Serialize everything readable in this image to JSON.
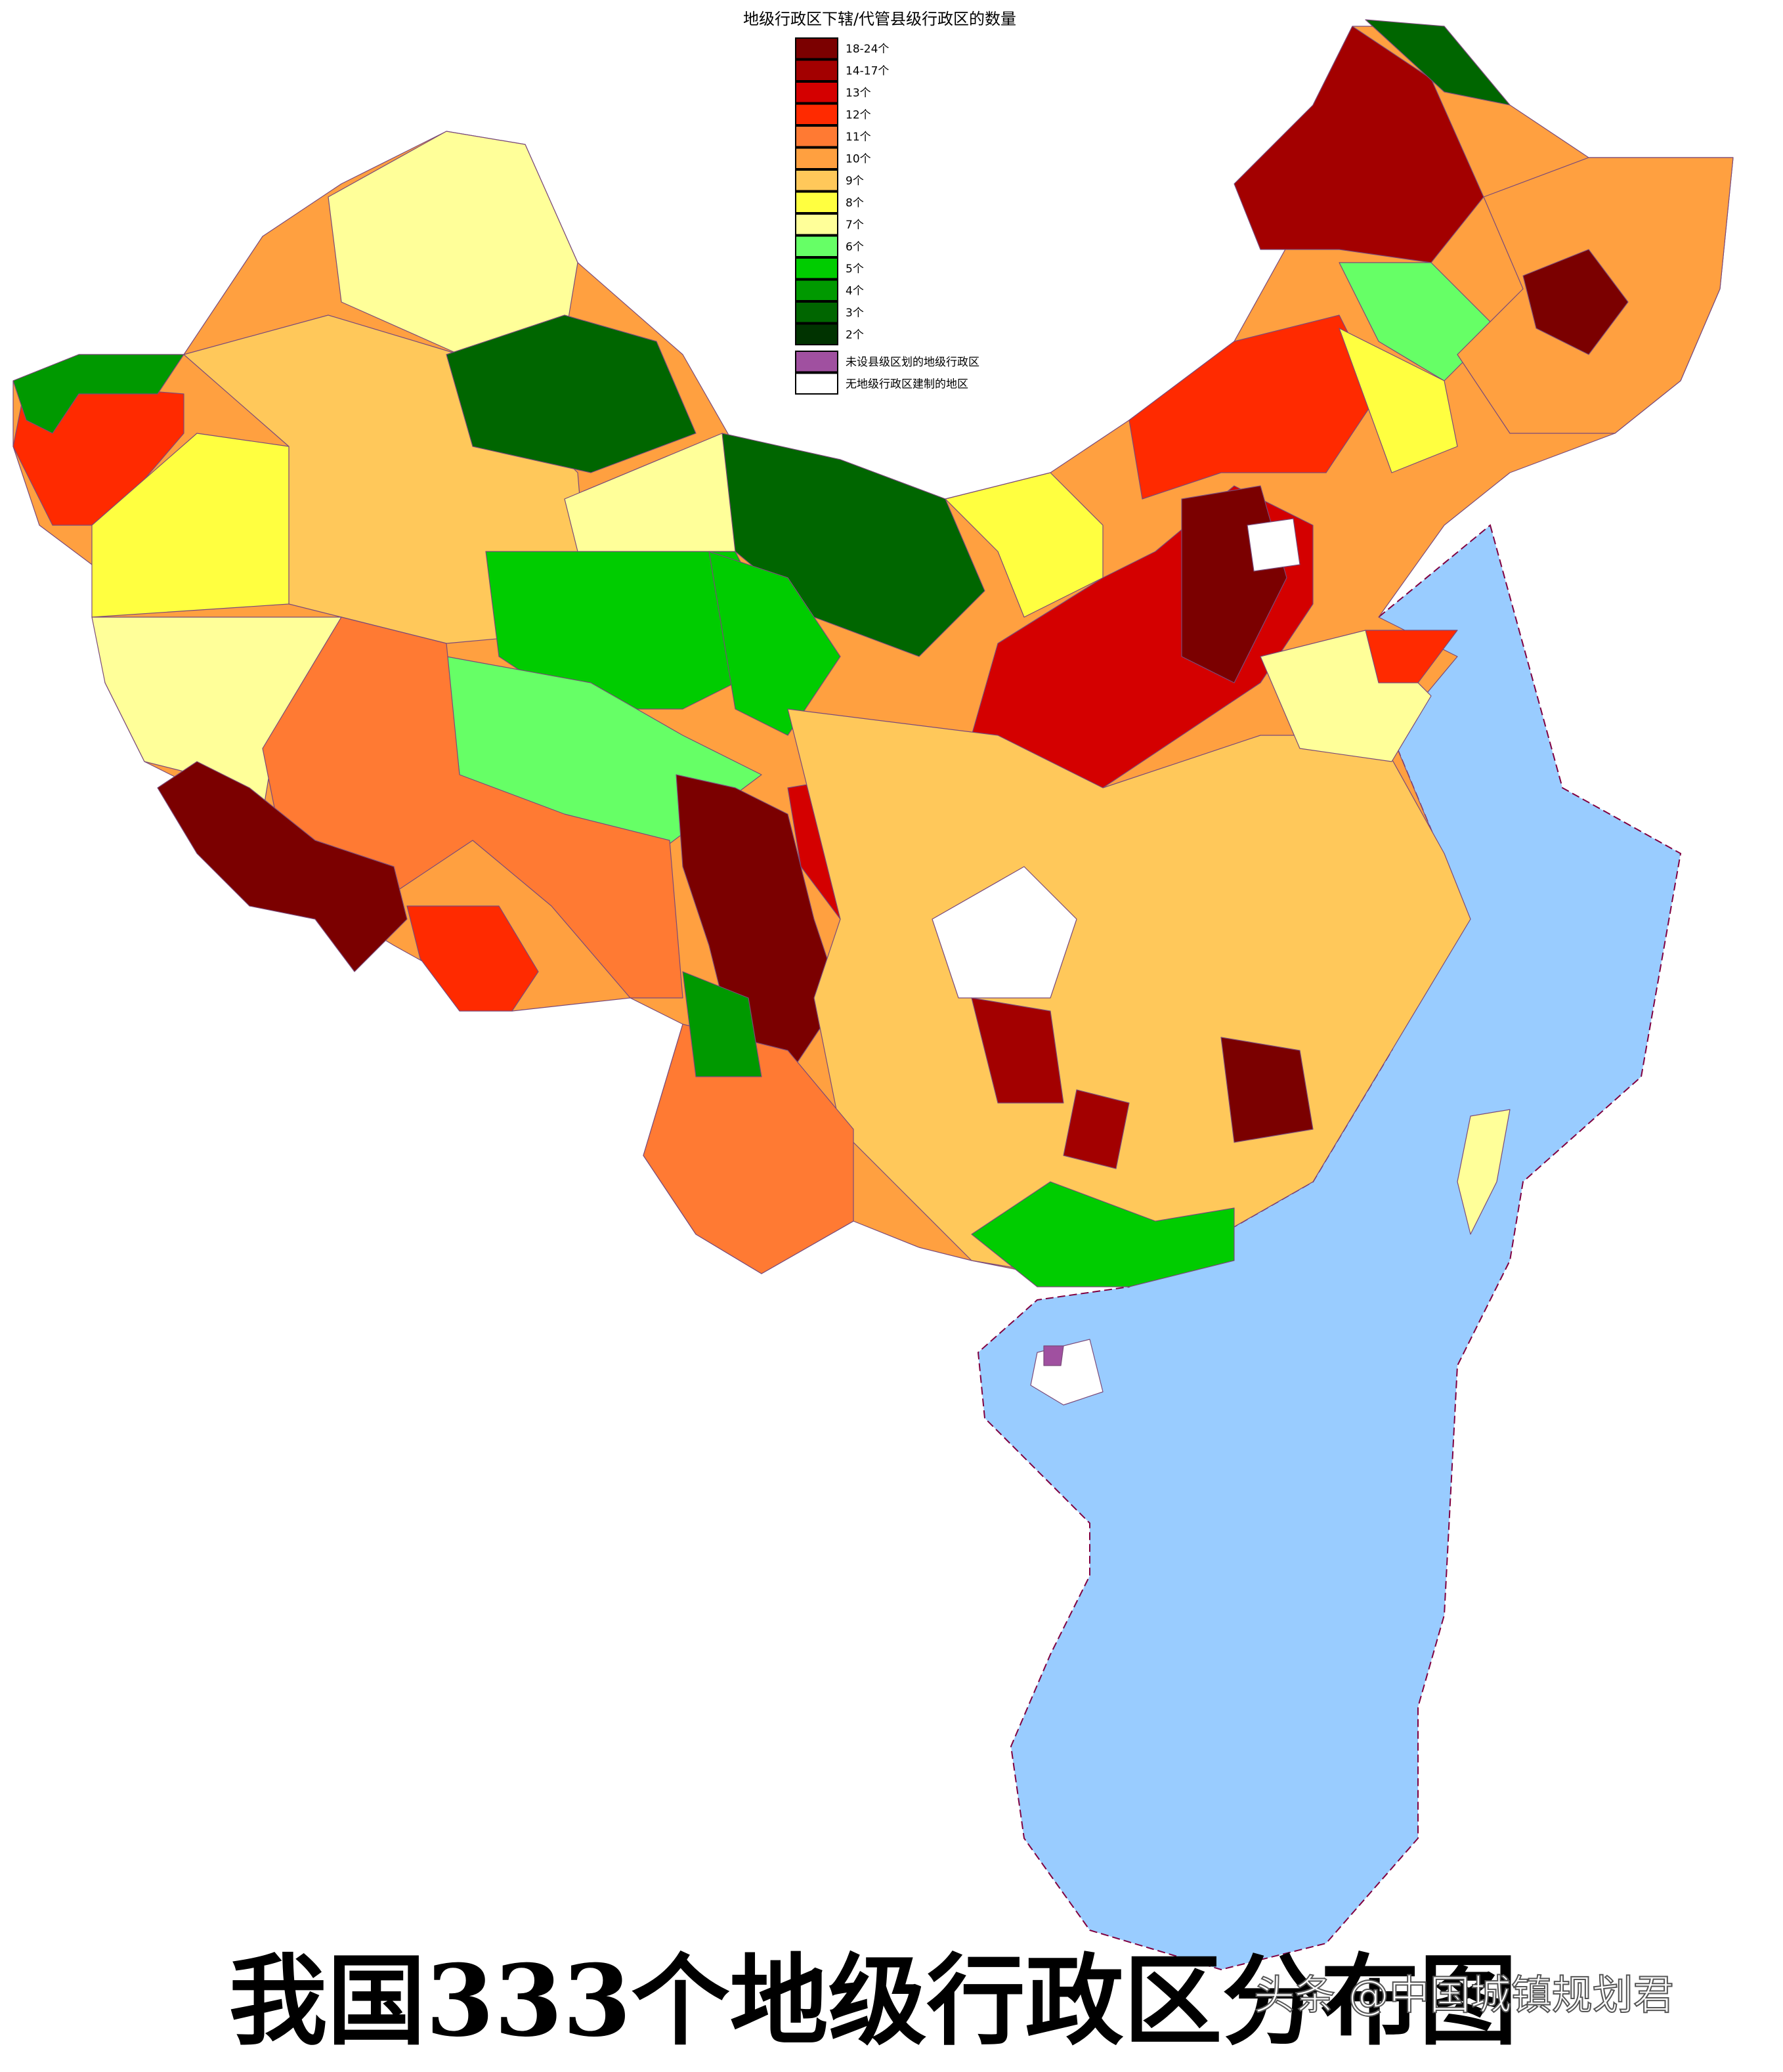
{
  "title": "地级行政区下辖/代管县级行政区的数量",
  "legend": [
    {
      "label": "18-24个",
      "color": "#7b0000"
    },
    {
      "label": "14-17个",
      "color": "#a30000"
    },
    {
      "label": "13个",
      "color": "#d40000"
    },
    {
      "label": "12个",
      "color": "#ff2a00"
    },
    {
      "label": "11个",
      "color": "#ff7a33"
    },
    {
      "label": "10个",
      "color": "#ffa040"
    },
    {
      "label": "9个",
      "color": "#ffc85a"
    },
    {
      "label": "8个",
      "color": "#ffff40"
    },
    {
      "label": "7个",
      "color": "#ffff99"
    },
    {
      "label": "6个",
      "color": "#66ff66"
    },
    {
      "label": "5个",
      "color": "#00cc00"
    },
    {
      "label": "4个",
      "color": "#009900"
    },
    {
      "label": "3个",
      "color": "#006600"
    },
    {
      "label": "2个",
      "color": "#003300"
    },
    {
      "label": "未设县级区划的地级行政区",
      "color": "#a050a0"
    },
    {
      "label": "无地级行政区建制的地区",
      "color": "#ffffff"
    }
  ],
  "caption": "我国333个地级行政区分布图",
  "watermark": "头条 @中国城镇规划君"
}
